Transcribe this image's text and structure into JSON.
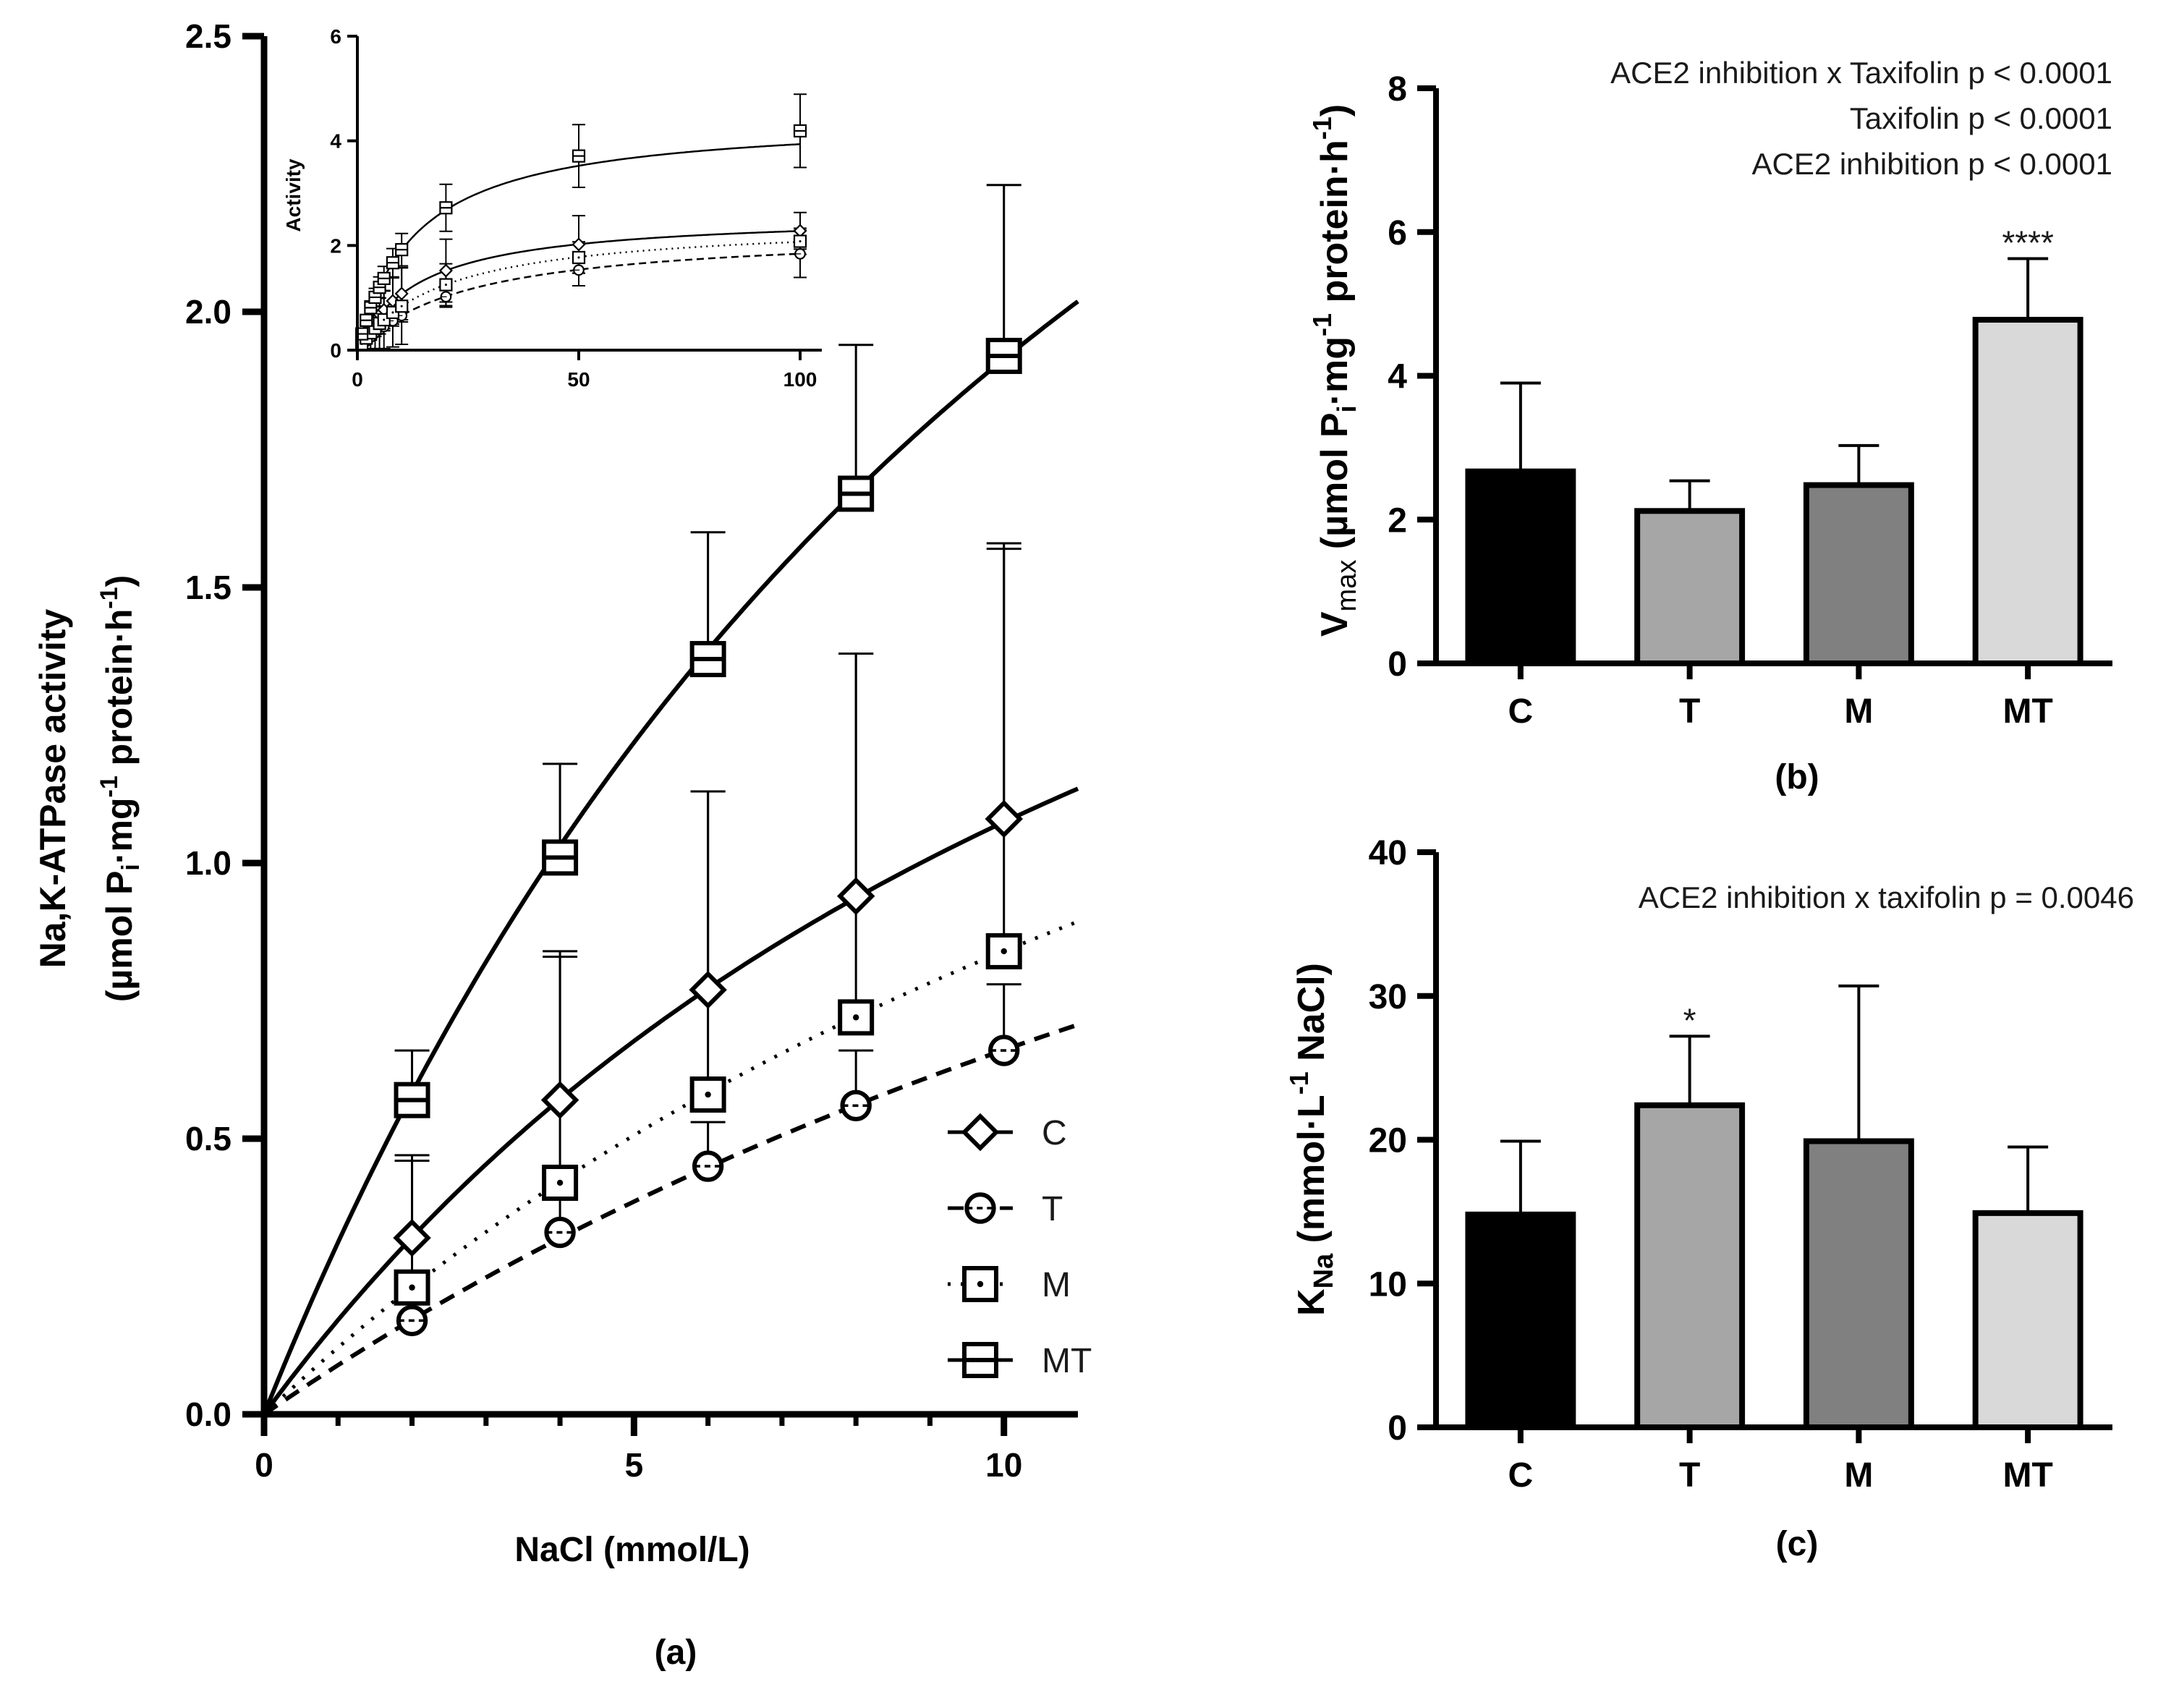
{
  "chart_data": [
    {
      "id": "a",
      "type": "line",
      "panel_label": "(a)",
      "title": "",
      "xlabel": "NaCl (mmol/L)",
      "ylabel_line1": "Na,K-ATPase activity",
      "ylabel_line2": "(µmol Pi·mg-1 protein·h-1)",
      "xlim": [
        0,
        11
      ],
      "ylim": [
        0,
        2.5
      ],
      "xticks": [
        "0",
        "5",
        "10"
      ],
      "yticks": [
        "0.0",
        "0.5",
        "1.0",
        "1.5",
        "2.0",
        "2.5"
      ],
      "legend": {
        "position": "bottom-right",
        "entries": [
          "C",
          "T",
          "M",
          "MT"
        ]
      },
      "x": [
        2,
        4,
        6,
        8,
        10
      ],
      "series": [
        {
          "name": "C",
          "marker": "diamond",
          "line": "solid",
          "values": [
            0.32,
            0.57,
            0.77,
            0.94,
            1.08
          ],
          "errors": [
            0.15,
            0.27,
            0.36,
            0.44,
            0.5
          ],
          "vmax": 2.6,
          "km": 14.2,
          "curve_to": 11
        },
        {
          "name": "T",
          "marker": "circle",
          "line": "dashed",
          "values": [
            0.17,
            0.33,
            0.45,
            0.56,
            0.66
          ],
          "errors": [
            0.05,
            0.07,
            0.08,
            0.1,
            0.12
          ],
          "vmax": 2.3,
          "km": 24.8,
          "curve_to": 11
        },
        {
          "name": "M",
          "marker": "square-dot",
          "line": "dotted",
          "values": [
            0.23,
            0.42,
            0.58,
            0.72,
            0.84
          ],
          "errors": [
            0.23,
            0.41,
            0.55,
            0.66,
            0.73
          ],
          "vmax": 2.47,
          "km": 19.4,
          "curve_to": 11
        },
        {
          "name": "MT",
          "marker": "square",
          "line": "solid",
          "values": [
            0.57,
            1.01,
            1.37,
            1.67,
            1.92
          ],
          "errors": [
            0.09,
            0.17,
            0.23,
            0.27,
            0.31
          ],
          "vmax": 4.46,
          "km": 13.3,
          "curve_to": 11
        }
      ]
    },
    {
      "id": "inset",
      "type": "line",
      "title": "",
      "xlabel": "",
      "ylabel": "Activity",
      "xlim": [
        0,
        100
      ],
      "ylim": [
        0,
        6
      ],
      "xticks": [
        "0",
        "50",
        "100"
      ],
      "yticks": [
        "0",
        "2",
        "4",
        "6"
      ],
      "x": [
        1,
        2,
        3,
        4,
        5,
        6,
        8,
        10,
        20,
        50,
        100
      ],
      "series": [
        {
          "name": "C",
          "marker": "diamond",
          "line": "solid",
          "values": [
            0.17,
            0.32,
            0.45,
            0.57,
            0.68,
            0.77,
            0.94,
            1.08,
            1.52,
            2.02,
            2.28
          ],
          "errors": [
            0.08,
            0.15,
            0.21,
            0.27,
            0.32,
            0.36,
            0.44,
            0.5,
            0.6,
            0.55,
            0.35
          ]
        },
        {
          "name": "T",
          "marker": "circle",
          "line": "dashed",
          "values": [
            0.09,
            0.17,
            0.25,
            0.33,
            0.39,
            0.45,
            0.56,
            0.66,
            1.02,
            1.53,
            1.84
          ],
          "errors": [
            0.03,
            0.05,
            0.06,
            0.07,
            0.08,
            0.08,
            0.1,
            0.12,
            0.2,
            0.3,
            0.45
          ]
        },
        {
          "name": "M",
          "marker": "square-dot",
          "line": "dotted",
          "values": [
            0.12,
            0.23,
            0.33,
            0.42,
            0.51,
            0.58,
            0.72,
            0.84,
            1.25,
            1.77,
            2.08
          ],
          "errors": [
            0.1,
            0.23,
            0.3,
            0.41,
            0.48,
            0.55,
            0.66,
            0.73,
            0.4,
            0.3,
            0.25
          ]
        },
        {
          "name": "MT",
          "marker": "square",
          "line": "solid",
          "values": [
            0.31,
            0.57,
            0.81,
            1.01,
            1.2,
            1.37,
            1.67,
            1.92,
            2.72,
            3.71,
            4.19
          ],
          "errors": [
            0.05,
            0.09,
            0.13,
            0.17,
            0.2,
            0.23,
            0.27,
            0.31,
            0.45,
            0.6,
            0.7
          ]
        }
      ]
    },
    {
      "id": "b",
      "type": "bar",
      "panel_label": "(b)",
      "ylabel": "Vmax (µmol Pi·mg-1 protein·h-1)",
      "ylim": [
        0,
        8
      ],
      "yticks": [
        "0",
        "2",
        "4",
        "6",
        "8"
      ],
      "categories": [
        "C",
        "T",
        "M",
        "MT"
      ],
      "values": [
        2.67,
        2.12,
        2.48,
        4.78
      ],
      "errors": [
        1.23,
        0.42,
        0.55,
        0.85
      ],
      "colors": [
        "#000000",
        "#a6a6a6",
        "#808080",
        "#d9d9d9"
      ],
      "significance": [
        "",
        "",
        "",
        "****"
      ],
      "annotations": [
        "ACE2 inhibition x Taxifolin p < 0.0001",
        "Taxifolin p < 0.0001",
        "ACE2 inhibition p < 0.0001"
      ]
    },
    {
      "id": "c",
      "type": "bar",
      "panel_label": "(c)",
      "ylabel": "KNa (mmol·L-1 NaCl)",
      "ylim": [
        0,
        40
      ],
      "yticks": [
        "0",
        "10",
        "20",
        "30",
        "40"
      ],
      "categories": [
        "C",
        "T",
        "M",
        "MT"
      ],
      "values": [
        14.8,
        22.4,
        19.9,
        14.9
      ],
      "errors": [
        5.1,
        4.8,
        10.8,
        4.6
      ],
      "colors": [
        "#000000",
        "#a6a6a6",
        "#808080",
        "#d9d9d9"
      ],
      "significance": [
        "",
        "*",
        "",
        ""
      ],
      "annotations": [
        "ACE2 inhibition x taxifolin p = 0.0046"
      ]
    }
  ]
}
